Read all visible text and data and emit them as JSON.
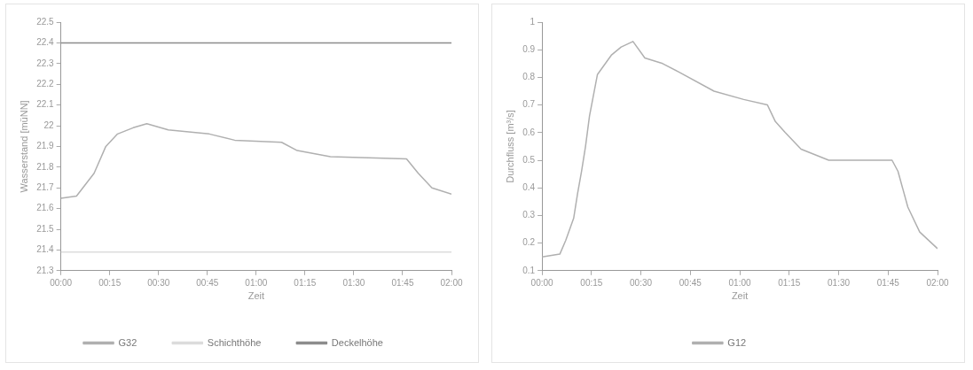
{
  "chart_data": [
    {
      "type": "line",
      "xlabel": "Zeit",
      "ylabel": "Wasserstand [müNN]",
      "legend": "bottom",
      "grid": false,
      "marker": "none",
      "xlim": [
        0,
        2
      ],
      "xticks": [
        {
          "value": 0,
          "label": "00:00"
        },
        {
          "value": 0.25,
          "label": "00:15"
        },
        {
          "value": 0.5,
          "label": "00:30"
        },
        {
          "value": 0.75,
          "label": "00:45"
        },
        {
          "value": 1,
          "label": "01:00"
        },
        {
          "value": 1.25,
          "label": "01:15"
        },
        {
          "value": 1.5,
          "label": "01:30"
        },
        {
          "value": 1.75,
          "label": "01:45"
        },
        {
          "value": 2,
          "label": "02:00"
        }
      ],
      "ylim": [
        21.3,
        22.5
      ],
      "yticks": [
        21.3,
        21.4,
        21.5,
        21.6,
        21.7,
        21.8,
        21.9,
        22,
        22.1,
        22.2,
        22.3,
        22.4,
        22.5
      ],
      "series": [
        {
          "name": "G32",
          "color": "#b0b0b0",
          "x": [
            0,
            0.08,
            0.17,
            0.23,
            0.29,
            0.37,
            0.44,
            0.55,
            0.76,
            0.89,
            1.13,
            1.21,
            1.38,
            1.77,
            1.83,
            1.9,
            2
          ],
          "values": [
            21.65,
            21.66,
            21.77,
            21.9,
            21.96,
            21.99,
            22.01,
            21.98,
            21.96,
            21.93,
            21.92,
            21.88,
            21.85,
            21.84,
            21.77,
            21.7,
            21.67
          ]
        },
        {
          "name": "Schichthöhe",
          "color": "#dcdcdc",
          "x": [
            0,
            2
          ],
          "values": [
            21.39,
            21.39
          ]
        },
        {
          "name": "Deckelhöhe",
          "color": "#8c8c8c",
          "x": [
            0,
            2
          ],
          "values": [
            22.4,
            22.4
          ]
        }
      ]
    },
    {
      "type": "line",
      "xlabel": "Zeit",
      "ylabel": "Durchfluss [m³/s]",
      "legend": "bottom",
      "grid": false,
      "marker": "none",
      "xlim": [
        0,
        2
      ],
      "xticks": [
        {
          "value": 0,
          "label": "00:00"
        },
        {
          "value": 0.25,
          "label": "00:15"
        },
        {
          "value": 0.5,
          "label": "00:30"
        },
        {
          "value": 0.75,
          "label": "00:45"
        },
        {
          "value": 1,
          "label": "01:00"
        },
        {
          "value": 1.25,
          "label": "01:15"
        },
        {
          "value": 1.5,
          "label": "01:30"
        },
        {
          "value": 1.75,
          "label": "01:45"
        },
        {
          "value": 2,
          "label": "02:00"
        }
      ],
      "ylim": [
        0.1,
        1
      ],
      "yticks": [
        0.1,
        0.2,
        0.3,
        0.4,
        0.5,
        0.6,
        0.7,
        0.8,
        0.9,
        1
      ],
      "series": [
        {
          "name": "G12",
          "color": "#b0b0b0",
          "x": [
            0,
            0.09,
            0.12,
            0.16,
            0.18,
            0.2,
            0.22,
            0.24,
            0.28,
            0.35,
            0.4,
            0.46,
            0.52,
            0.61,
            0.69,
            0.87,
            1.02,
            1.14,
            1.18,
            1.23,
            1.31,
            1.45,
            1.77,
            1.8,
            1.85,
            1.91,
            2
          ],
          "values": [
            0.15,
            0.16,
            0.21,
            0.29,
            0.38,
            0.46,
            0.55,
            0.66,
            0.81,
            0.88,
            0.91,
            0.93,
            0.87,
            0.85,
            0.82,
            0.75,
            0.72,
            0.7,
            0.64,
            0.6,
            0.54,
            0.5,
            0.5,
            0.46,
            0.33,
            0.24,
            0.18
          ]
        }
      ]
    }
  ]
}
